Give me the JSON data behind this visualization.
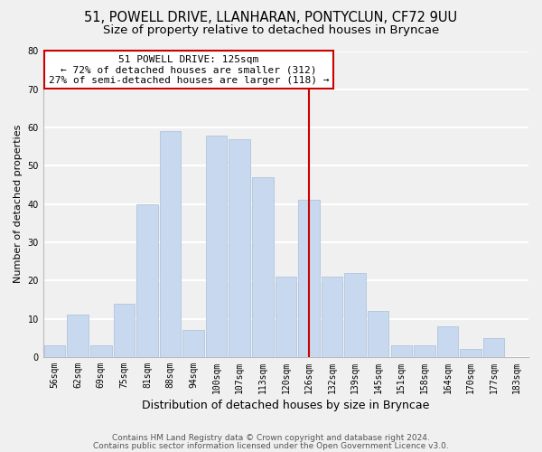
{
  "title1": "51, POWELL DRIVE, LLANHARAN, PONTYCLUN, CF72 9UU",
  "title2": "Size of property relative to detached houses in Bryncae",
  "xlabel": "Distribution of detached houses by size in Bryncae",
  "ylabel": "Number of detached properties",
  "bar_labels": [
    "56sqm",
    "62sqm",
    "69sqm",
    "75sqm",
    "81sqm",
    "88sqm",
    "94sqm",
    "100sqm",
    "107sqm",
    "113sqm",
    "120sqm",
    "126sqm",
    "132sqm",
    "139sqm",
    "145sqm",
    "151sqm",
    "158sqm",
    "164sqm",
    "170sqm",
    "177sqm",
    "183sqm"
  ],
  "bar_values": [
    3,
    11,
    3,
    14,
    40,
    59,
    7,
    58,
    57,
    47,
    21,
    41,
    21,
    22,
    12,
    3,
    3,
    8,
    2,
    5,
    0
  ],
  "bar_color": "#c8d8ee",
  "bar_edge_color": "#b0c4de",
  "vline_color": "#cc0000",
  "annotation_title": "51 POWELL DRIVE: 125sqm",
  "annotation_line1": "← 72% of detached houses are smaller (312)",
  "annotation_line2": "27% of semi-detached houses are larger (118) →",
  "annotation_box_color": "#ffffff",
  "annotation_box_edge": "#cc0000",
  "ylim": [
    0,
    80
  ],
  "yticks": [
    0,
    10,
    20,
    30,
    40,
    50,
    60,
    70,
    80
  ],
  "footer1": "Contains HM Land Registry data © Crown copyright and database right 2024.",
  "footer2": "Contains public sector information licensed under the Open Government Licence v3.0.",
  "background_color": "#f0f0f0",
  "grid_color": "#ffffff",
  "title1_fontsize": 10.5,
  "title2_fontsize": 9.5,
  "xlabel_fontsize": 9,
  "ylabel_fontsize": 8,
  "tick_fontsize": 7,
  "annotation_fontsize": 8,
  "footer_fontsize": 6.5
}
